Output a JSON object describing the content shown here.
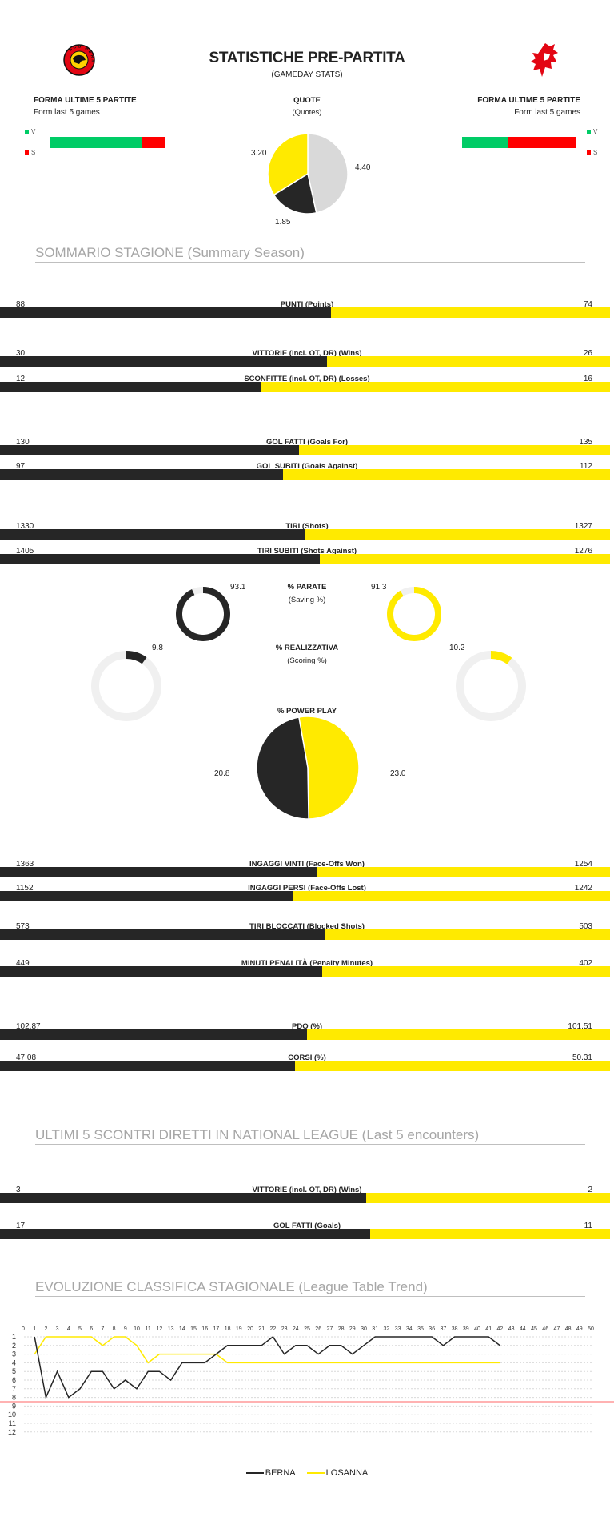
{
  "header": {
    "title": "STATISTICHE PRE-PARTITA",
    "subtitle": "(GAMEDAY STATS)",
    "home_logo_text": "SCB BERN",
    "away_logo": "Lausanne HC lion"
  },
  "form": {
    "title": "FORMA ULTIME 5 PARTITE",
    "subtitle": "Form last 5 games",
    "legend_win": "V",
    "legend_loss": "S",
    "colors": {
      "win": "#00CC66",
      "loss": "#FF0000"
    },
    "home": {
      "wins": 4,
      "losses": 1
    },
    "away": {
      "wins": 2,
      "losses": 3
    }
  },
  "quotes": {
    "title": "QUOTE",
    "subtitle": "(Quotes)",
    "slices": [
      {
        "value": "4.40",
        "num": 4.4,
        "color": "#D9D9D9"
      },
      {
        "value": "1.85",
        "num": 1.85,
        "color": "#262626"
      },
      {
        "value": "3.20",
        "num": 3.2,
        "color": "#FFEA00"
      }
    ]
  },
  "colors": {
    "home": "#262626",
    "away": "#FFEA00",
    "track": "#F0F0F0"
  },
  "summary": {
    "heading": "SOMMARIO STAGIONE (Summary Season)",
    "stats": [
      {
        "label": "PUNTI (Points)",
        "home": "88",
        "away": "74"
      },
      {
        "label": "VITTORIE (incl. OT, DR) (Wins)",
        "home": "30",
        "away": "26"
      },
      {
        "label": "SCONFITTE (incl. OT, DR) (Losses)",
        "home": "12",
        "away": "16"
      },
      {
        "label": "GOL FATTI (Goals For)",
        "home": "130",
        "away": "135"
      },
      {
        "label": "GOL SUBITI (Goals Against)",
        "home": "97",
        "away": "112"
      },
      {
        "label": "TIRI (Shots)",
        "home": "1330",
        "away": "1327"
      },
      {
        "label": "TIRI SUBITI (Shots Against)",
        "home": "1405",
        "away": "1276"
      },
      {
        "label": "INGAGGI VINTI (Face-Offs Won)",
        "home": "1363",
        "away": "1254"
      },
      {
        "label": "INGAGGI PERSI (Face-Offs Lost)",
        "home": "1152",
        "away": "1242"
      },
      {
        "label": "TIRI BLOCCATI (Blocked Shots)",
        "home": "573",
        "away": "503"
      },
      {
        "label": "MINUTI PENALITÀ (Penalty Minutes)",
        "home": "449",
        "away": "402"
      },
      {
        "label": "PDO (%)",
        "home": "102.87",
        "away": "101.51"
      },
      {
        "label": "CORSI (%)",
        "home": "47.08",
        "away": "50.31"
      }
    ],
    "saving": {
      "label": "% PARATE",
      "sublabel": "(Saving %)",
      "home": "93.1",
      "away": "91.3"
    },
    "scoring": {
      "label": "% REALIZZATIVA",
      "sublabel": "(Scoring %)",
      "home": "9.8",
      "away": "10.2"
    },
    "powerplay": {
      "label": "% POWER PLAY",
      "home": "20.8",
      "away": "23.0"
    }
  },
  "h2h": {
    "heading": "ULTIMI 5 SCONTRI DIRETTI IN NATIONAL LEAGUE (Last 5 encounters)",
    "stats": [
      {
        "label": "VITTORIE (incl. OT, DR) (Wins)",
        "home": "3",
        "away": "2"
      },
      {
        "label": "GOL FATTI (Goals)",
        "home": "17",
        "away": "11"
      }
    ]
  },
  "trend": {
    "heading": "EVOLUZIONE CLASSIFICA STAGIONALE (League Table Trend)"
  },
  "chart_data": {
    "type": "line",
    "xlim": [
      0,
      50
    ],
    "ylim": [
      1,
      12
    ],
    "y_inverted": true,
    "x_ticks": [
      0,
      1,
      2,
      3,
      4,
      5,
      6,
      7,
      8,
      9,
      10,
      11,
      12,
      13,
      14,
      15,
      16,
      17,
      18,
      19,
      20,
      21,
      22,
      23,
      24,
      25,
      26,
      27,
      28,
      29,
      30,
      31,
      32,
      33,
      34,
      35,
      36,
      37,
      38,
      39,
      40,
      41,
      42,
      43,
      44,
      45,
      46,
      47,
      48,
      49,
      50
    ],
    "y_ticks": [
      1,
      2,
      3,
      4,
      5,
      6,
      7,
      8,
      9,
      10,
      11,
      12
    ],
    "grid": "horizontal dashed",
    "legend": "bottom",
    "threshold_line": {
      "between": [
        8,
        9
      ],
      "color": "#FF0000"
    },
    "series": [
      {
        "name": "BERNA",
        "color": "#262626",
        "x": [
          1,
          2,
          3,
          4,
          5,
          6,
          7,
          8,
          9,
          10,
          11,
          12,
          13,
          14,
          15,
          16,
          17,
          18,
          19,
          20,
          21,
          22,
          23,
          24,
          25,
          26,
          27,
          28,
          29,
          30,
          31,
          32,
          33,
          34,
          35,
          36,
          37,
          38,
          39,
          40,
          41,
          42
        ],
        "values": [
          1,
          8,
          5,
          8,
          7,
          5,
          5,
          7,
          6,
          7,
          5,
          5,
          6,
          4,
          4,
          4,
          3,
          2,
          2,
          2,
          2,
          1,
          3,
          2,
          2,
          3,
          2,
          2,
          3,
          2,
          1,
          1,
          1,
          1,
          1,
          1,
          2,
          1,
          1,
          1,
          1,
          2
        ]
      },
      {
        "name": "LOSANNA",
        "color": "#FFEA00",
        "x": [
          1,
          2,
          3,
          4,
          5,
          6,
          7,
          8,
          9,
          10,
          11,
          12,
          13,
          14,
          15,
          16,
          17,
          18,
          19,
          20,
          21,
          22,
          23,
          24,
          25,
          26,
          27,
          28,
          29,
          30,
          31,
          32,
          33,
          34,
          35,
          36,
          37,
          38,
          39,
          40,
          41,
          42
        ],
        "values": [
          3,
          1,
          1,
          1,
          1,
          1,
          2,
          1,
          1,
          2,
          4,
          3,
          3,
          3,
          3,
          3,
          3,
          4,
          4,
          4,
          4,
          4,
          4,
          4,
          4,
          4,
          4,
          4,
          4,
          4,
          4,
          4,
          4,
          4,
          4,
          4,
          4,
          4,
          4,
          4,
          4,
          4
        ]
      }
    ]
  }
}
